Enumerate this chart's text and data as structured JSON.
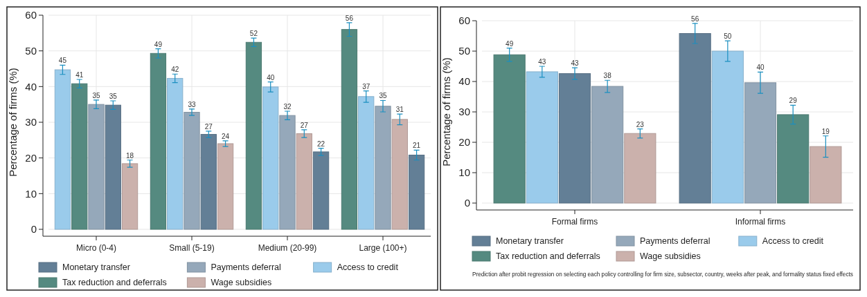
{
  "chart_data": [
    {
      "type": "bar",
      "ylabel": "Percentage of firms (%)",
      "categories": [
        "Micro (0-4)",
        "Small (5-19)",
        "Medium (20-99)",
        "Large (100+)"
      ],
      "ylim": [
        0,
        60
      ],
      "yticks": [
        0,
        10,
        20,
        30,
        40,
        50,
        60
      ],
      "grid": true,
      "legend": "bottom",
      "series": [
        {
          "name": "Monetary transfer",
          "color": "#637f96",
          "values": [
            34.8,
            26.6,
            21.7,
            20.8
          ],
          "errors": [
            1.2,
            0.9,
            1.0,
            1.4
          ],
          "value_labels": [
            "35",
            "27",
            "22",
            "21"
          ]
        },
        {
          "name": "Payments deferral",
          "color": "#95a8ba",
          "values": [
            35.0,
            32.8,
            31.9,
            34.5
          ],
          "errors": [
            1.2,
            0.9,
            1.2,
            1.6
          ],
          "value_labels": [
            "35",
            "33",
            "32",
            "35"
          ]
        },
        {
          "name": "Access to credit",
          "color": "#9acbeb",
          "values": [
            44.7,
            42.3,
            39.9,
            37.2
          ],
          "errors": [
            1.3,
            1.2,
            1.4,
            1.6
          ],
          "value_labels": [
            "45",
            "42",
            "40",
            "37"
          ]
        },
        {
          "name": "Tax reduction and deferrals",
          "color": "#558a80",
          "values": [
            40.8,
            49.3,
            52.4,
            56.0
          ],
          "errors": [
            1.2,
            1.3,
            1.2,
            1.9
          ],
          "value_labels": [
            "41",
            "49",
            "52",
            "56"
          ]
        },
        {
          "name": "Wage subsidies",
          "color": "#cbb1ac",
          "values": [
            18.4,
            24.0,
            26.8,
            30.8
          ],
          "errors": [
            1.0,
            0.8,
            1.1,
            1.5
          ],
          "value_labels": [
            "18",
            "24",
            "27",
            "31"
          ]
        }
      ]
    },
    {
      "type": "bar",
      "ylabel": "Percentage of firms (%)",
      "categories": [
        "Formal firms",
        "Informal firms"
      ],
      "ylim": [
        0,
        60
      ],
      "yticks": [
        0,
        10,
        20,
        30,
        40,
        50,
        60
      ],
      "grid": true,
      "legend": "bottom",
      "annotations": [
        "Prediction after probit regression on selecting each policy controlling for firm size, subsector, country, weeks after peak, and formality status fixed effects"
      ],
      "series": [
        {
          "name": "Monetary transfer",
          "color": "#637f96",
          "values": [
            42.6,
            55.8
          ],
          "errors": [
            1.9,
            3.3
          ],
          "value_labels": [
            "43",
            "56"
          ]
        },
        {
          "name": "Payments deferral",
          "color": "#95a8ba",
          "values": [
            38.4,
            39.6
          ],
          "errors": [
            2.0,
            3.5
          ],
          "value_labels": [
            "38",
            "40"
          ]
        },
        {
          "name": "Access to credit",
          "color": "#9acbeb",
          "values": [
            43.2,
            50.0
          ],
          "errors": [
            1.8,
            3.4
          ],
          "value_labels": [
            "43",
            "50"
          ]
        },
        {
          "name": "Tax reduction and deferrals",
          "color": "#558a80",
          "values": [
            48.8,
            29.1
          ],
          "errors": [
            2.2,
            3.1
          ],
          "value_labels": [
            "49",
            "29"
          ]
        },
        {
          "name": "Wage subsidies",
          "color": "#cbb1ac",
          "values": [
            22.9,
            18.6
          ],
          "errors": [
            1.5,
            3.5
          ],
          "value_labels": [
            "23",
            "19"
          ]
        }
      ]
    }
  ]
}
